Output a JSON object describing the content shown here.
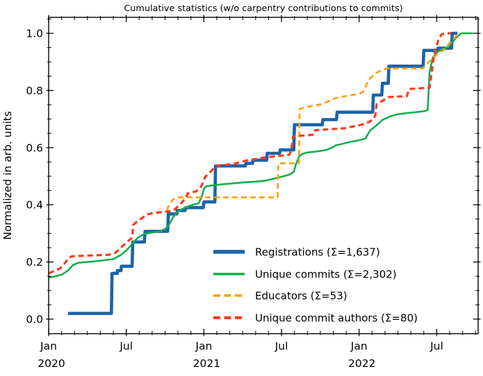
{
  "figure": {
    "title": "Cumulative statistics (w/o carpentry contributions to commits)",
    "ylabel": "Normalized in arb. units"
  },
  "chart_data": {
    "type": "line",
    "title": "Cumulative statistics (w/o carpentry contributions to commits)",
    "xlabel": "",
    "ylabel": "Normalized in arb. units",
    "grid": false,
    "legend_position": "lower right",
    "legend_frame": false,
    "x_axis": {
      "unit": "months since Jan 2020",
      "range_months": [
        0,
        33.2
      ],
      "major_tick_months": [
        0,
        6,
        12,
        18,
        24,
        30
      ],
      "major_tick_labels": [
        "Jan",
        "Jul",
        "Jan",
        "Jul",
        "Jan",
        "Jul"
      ],
      "year_labels": [
        {
          "month": 0,
          "text": "2020"
        },
        {
          "month": 12,
          "text": "2021"
        },
        {
          "month": 24,
          "text": "2022"
        }
      ],
      "minor_tick_every_months": 1
    },
    "y_axis": {
      "range": [
        -0.05,
        1.06
      ],
      "major_ticks": [
        0.0,
        0.2,
        0.4,
        0.6,
        0.8,
        1.0
      ],
      "major_tick_labels": [
        "0.0",
        "0.2",
        "0.4",
        "0.6",
        "0.8",
        "1.0"
      ],
      "minor_tick_every": 0.05
    },
    "series": [
      {
        "name": "registrations",
        "legend_label": "Registrations  (Σ=1,637)",
        "total": "1,637",
        "color": "#1c63a9",
        "style": "solid",
        "width": 4.6,
        "points": [
          [
            1.5,
            0.02
          ],
          [
            4.85,
            0.02
          ],
          [
            4.9,
            0.16
          ],
          [
            5.3,
            0.16
          ],
          [
            5.32,
            0.17
          ],
          [
            5.6,
            0.17
          ],
          [
            5.62,
            0.185
          ],
          [
            6.45,
            0.185
          ],
          [
            6.5,
            0.27
          ],
          [
            7.4,
            0.27
          ],
          [
            7.45,
            0.307
          ],
          [
            9.2,
            0.307
          ],
          [
            9.25,
            0.368
          ],
          [
            9.9,
            0.368
          ],
          [
            9.95,
            0.38
          ],
          [
            10.55,
            0.38
          ],
          [
            10.6,
            0.39
          ],
          [
            11.95,
            0.39
          ],
          [
            12.0,
            0.41
          ],
          [
            12.85,
            0.41
          ],
          [
            12.9,
            0.536
          ],
          [
            15.2,
            0.536
          ],
          [
            15.25,
            0.545
          ],
          [
            15.75,
            0.545
          ],
          [
            15.8,
            0.556
          ],
          [
            16.85,
            0.556
          ],
          [
            16.9,
            0.58
          ],
          [
            17.85,
            0.58
          ],
          [
            17.9,
            0.592
          ],
          [
            18.95,
            0.592
          ],
          [
            19.0,
            0.68
          ],
          [
            21.15,
            0.68
          ],
          [
            21.2,
            0.698
          ],
          [
            22.25,
            0.698
          ],
          [
            22.3,
            0.724
          ],
          [
            25.05,
            0.724
          ],
          [
            25.1,
            0.784
          ],
          [
            25.75,
            0.784
          ],
          [
            25.8,
            0.825
          ],
          [
            26.25,
            0.825
          ],
          [
            26.3,
            0.885
          ],
          [
            28.95,
            0.885
          ],
          [
            29.0,
            0.94
          ],
          [
            30.05,
            0.94
          ],
          [
            30.1,
            0.948
          ],
          [
            31.15,
            0.948
          ],
          [
            31.2,
            1.0
          ],
          [
            31.6,
            1.0
          ]
        ]
      },
      {
        "name": "unique-commits",
        "legend_label": "Unique commits (Σ=2,302)",
        "total": "2,302",
        "color": "#10af4c",
        "style": "solid",
        "width": 2.6,
        "points": [
          [
            0,
            0.145
          ],
          [
            1.0,
            0.155
          ],
          [
            1.5,
            0.17
          ],
          [
            1.9,
            0.19
          ],
          [
            2.3,
            0.197
          ],
          [
            3.5,
            0.202
          ],
          [
            5.0,
            0.21
          ],
          [
            5.6,
            0.225
          ],
          [
            6.0,
            0.24
          ],
          [
            6.4,
            0.26
          ],
          [
            6.9,
            0.285
          ],
          [
            7.4,
            0.298
          ],
          [
            8.0,
            0.303
          ],
          [
            8.6,
            0.307
          ],
          [
            9.0,
            0.315
          ],
          [
            9.3,
            0.33
          ],
          [
            9.6,
            0.355
          ],
          [
            9.9,
            0.373
          ],
          [
            10.3,
            0.385
          ],
          [
            11.0,
            0.398
          ],
          [
            11.6,
            0.405
          ],
          [
            11.85,
            0.43
          ],
          [
            12.0,
            0.457
          ],
          [
            12.2,
            0.465
          ],
          [
            13.0,
            0.47
          ],
          [
            14.0,
            0.474
          ],
          [
            15.0,
            0.478
          ],
          [
            16.0,
            0.481
          ],
          [
            16.7,
            0.484
          ],
          [
            17.3,
            0.49
          ],
          [
            18.0,
            0.498
          ],
          [
            18.6,
            0.505
          ],
          [
            18.95,
            0.515
          ],
          [
            19.1,
            0.54
          ],
          [
            19.35,
            0.568
          ],
          [
            19.6,
            0.578
          ],
          [
            20.0,
            0.583
          ],
          [
            20.8,
            0.587
          ],
          [
            21.5,
            0.592
          ],
          [
            21.9,
            0.6
          ],
          [
            22.2,
            0.608
          ],
          [
            22.7,
            0.613
          ],
          [
            23.3,
            0.62
          ],
          [
            23.9,
            0.625
          ],
          [
            24.5,
            0.632
          ],
          [
            24.65,
            0.645
          ],
          [
            24.85,
            0.66
          ],
          [
            25.3,
            0.676
          ],
          [
            25.8,
            0.697
          ],
          [
            26.4,
            0.709
          ],
          [
            26.9,
            0.716
          ],
          [
            27.5,
            0.72
          ],
          [
            28.4,
            0.724
          ],
          [
            29.1,
            0.728
          ],
          [
            29.3,
            0.733
          ],
          [
            29.45,
            0.865
          ],
          [
            29.7,
            0.915
          ],
          [
            30.0,
            0.932
          ],
          [
            30.4,
            0.945
          ],
          [
            30.9,
            0.953
          ],
          [
            31.2,
            0.968
          ],
          [
            31.5,
            0.985
          ],
          [
            31.9,
            1.0
          ],
          [
            32.8,
            1.0
          ]
        ]
      },
      {
        "name": "educators",
        "legend_label": "Educators (Σ=53)",
        "total": "53",
        "color": "#ffa01a",
        "style": "dashed",
        "width": 2.8,
        "points": [
          [
            9.15,
            0.38
          ],
          [
            9.3,
            0.4
          ],
          [
            9.6,
            0.418
          ],
          [
            9.95,
            0.426
          ],
          [
            17.7,
            0.426
          ],
          [
            17.75,
            0.545
          ],
          [
            19.35,
            0.545
          ],
          [
            19.4,
            0.735
          ],
          [
            19.9,
            0.742
          ],
          [
            20.9,
            0.75
          ],
          [
            21.4,
            0.757
          ],
          [
            21.9,
            0.769
          ],
          [
            22.4,
            0.776
          ],
          [
            24.0,
            0.788
          ],
          [
            24.3,
            0.795
          ],
          [
            24.75,
            0.837
          ],
          [
            25.3,
            0.861
          ],
          [
            25.9,
            0.874
          ],
          [
            26.2,
            0.877
          ],
          [
            28.9,
            0.877
          ],
          [
            29.75,
            0.916
          ],
          [
            30.1,
            0.928
          ],
          [
            30.5,
            0.94
          ],
          [
            30.85,
            0.957
          ],
          [
            31.1,
            0.973
          ],
          [
            31.4,
            0.985
          ],
          [
            31.65,
            1.0
          ],
          [
            31.8,
            1.0
          ]
        ]
      },
      {
        "name": "unique-commit-authors",
        "legend_label": "Unique commit authors (Σ=80)",
        "total": "80",
        "color": "#f93b1d",
        "style": "dashed",
        "width": 3.2,
        "points": [
          [
            0,
            0.16
          ],
          [
            0.4,
            0.168
          ],
          [
            0.9,
            0.178
          ],
          [
            1.3,
            0.198
          ],
          [
            1.5,
            0.212
          ],
          [
            1.8,
            0.22
          ],
          [
            3.0,
            0.222
          ],
          [
            4.6,
            0.225
          ],
          [
            5.1,
            0.23
          ],
          [
            5.5,
            0.246
          ],
          [
            5.8,
            0.259
          ],
          [
            6.1,
            0.271
          ],
          [
            6.45,
            0.285
          ],
          [
            6.55,
            0.33
          ],
          [
            6.9,
            0.344
          ],
          [
            7.3,
            0.356
          ],
          [
            7.6,
            0.366
          ],
          [
            8.2,
            0.372
          ],
          [
            9.3,
            0.377
          ],
          [
            9.7,
            0.382
          ],
          [
            10.3,
            0.408
          ],
          [
            10.6,
            0.425
          ],
          [
            10.75,
            0.44
          ],
          [
            11.4,
            0.447
          ],
          [
            11.8,
            0.465
          ],
          [
            12.1,
            0.497
          ],
          [
            12.5,
            0.515
          ],
          [
            12.8,
            0.53
          ],
          [
            13.0,
            0.537
          ],
          [
            14.3,
            0.543
          ],
          [
            15.3,
            0.555
          ],
          [
            16.0,
            0.56
          ],
          [
            16.6,
            0.565
          ],
          [
            17.2,
            0.568
          ],
          [
            18.0,
            0.572
          ],
          [
            18.6,
            0.575
          ],
          [
            18.75,
            0.59
          ],
          [
            18.9,
            0.64
          ],
          [
            20.5,
            0.645
          ],
          [
            20.6,
            0.661
          ],
          [
            22.9,
            0.668
          ],
          [
            23.3,
            0.672
          ],
          [
            24.2,
            0.68
          ],
          [
            24.8,
            0.69
          ],
          [
            25.1,
            0.7
          ],
          [
            25.25,
            0.712
          ],
          [
            25.35,
            0.752
          ],
          [
            25.8,
            0.764
          ],
          [
            26.3,
            0.777
          ],
          [
            27.7,
            0.78
          ],
          [
            27.85,
            0.805
          ],
          [
            29.45,
            0.81
          ],
          [
            29.8,
            0.925
          ],
          [
            30.1,
            0.973
          ],
          [
            30.35,
            0.995
          ],
          [
            30.6,
            1.0
          ],
          [
            31.1,
            1.0
          ]
        ]
      }
    ]
  }
}
